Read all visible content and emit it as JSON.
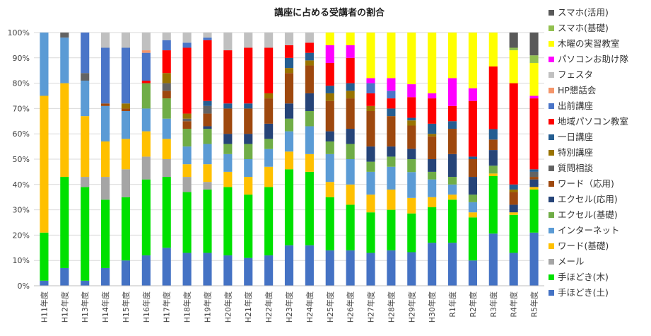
{
  "chart_data": {
    "type": "stacked-bar-100",
    "title": "講座に占める受講者の割合",
    "xlabel": "",
    "ylabel": "",
    "ylim": [
      0,
      100
    ],
    "yticks": [
      "0%",
      "10%",
      "20%",
      "30%",
      "40%",
      "50%",
      "60%",
      "70%",
      "80%",
      "90%",
      "100%"
    ],
    "legend_position": "right",
    "categories": [
      "H11年度",
      "H12年度",
      "H13年度",
      "H14年度",
      "H15年度",
      "H16年度",
      "H17年度",
      "H18年度",
      "H19年度",
      "H20年度",
      "H21年度",
      "H22年度",
      "H23年度",
      "H24年度",
      "H25年度",
      "H26年度",
      "H27年度",
      "H28年度",
      "H29年度",
      "H30年度",
      "R1年度",
      "R2年度",
      "R3年度",
      "R4年度",
      "R5年度"
    ],
    "series": [
      {
        "name": "手ほどき(土)",
        "color": "#4472C4",
        "values": [
          2,
          7,
          2,
          7,
          10,
          12,
          15,
          13,
          13,
          12,
          11,
          12,
          16,
          16,
          14,
          14,
          13,
          14,
          13,
          17,
          17,
          10,
          20,
          13,
          21
        ]
      },
      {
        "name": "手ほどき(木)",
        "color": "#00E000",
        "values": [
          19,
          36,
          37,
          27,
          25,
          30,
          28,
          24,
          25,
          27,
          25,
          27,
          30,
          29,
          21,
          18,
          16,
          16,
          15,
          14,
          17,
          17,
          22,
          15,
          17
        ]
      },
      {
        "name": "メール",
        "color": "#A5A5A5",
        "values": [
          0,
          0,
          4,
          9,
          11,
          9,
          7,
          6,
          3,
          0,
          0,
          0,
          0,
          0,
          0,
          0,
          0,
          0,
          0,
          0,
          0,
          0,
          0,
          0,
          0
        ]
      },
      {
        "name": "ワード(基礎)",
        "color": "#FFC000",
        "values": [
          54,
          37,
          24,
          14,
          12,
          10,
          8,
          5,
          7,
          6,
          7,
          8,
          7,
          7,
          6,
          8,
          7,
          8,
          6,
          4,
          2,
          2,
          1,
          1,
          1
        ]
      },
      {
        "name": "インターネット",
        "color": "#5B9BD5",
        "values": [
          25,
          18,
          14,
          14,
          11,
          9,
          8,
          7,
          8,
          7,
          7,
          7,
          8,
          11,
          11,
          10,
          9,
          9,
          10,
          7,
          4,
          4,
          0,
          0,
          0
        ]
      },
      {
        "name": "エクセル(基礎)",
        "color": "#70AD47",
        "values": [
          0,
          0,
          0,
          0,
          0,
          10,
          8,
          7,
          6,
          4,
          6,
          4,
          5,
          6,
          5,
          6,
          4,
          4,
          5,
          3,
          3,
          3,
          3,
          0,
          0
        ]
      },
      {
        "name": "エクセル(応用)",
        "color": "#264478",
        "values": [
          0,
          0,
          0,
          0,
          0,
          0,
          0,
          0,
          1,
          4,
          4,
          6,
          6,
          7,
          4,
          6,
          6,
          4,
          4,
          5,
          9,
          7,
          6,
          3,
          3
        ]
      },
      {
        "name": "ワード（応用)",
        "color": "#9E480E",
        "values": [
          0,
          0,
          0,
          1,
          1,
          0,
          3,
          3,
          5,
          10,
          10,
          10,
          12,
          11,
          12,
          12,
          14,
          12,
          9,
          9,
          10,
          7,
          4,
          5,
          1
        ]
      },
      {
        "name": "質問相談",
        "color": "#636363",
        "values": [
          0,
          2,
          3,
          0,
          0,
          0,
          3,
          1,
          3,
          0,
          0,
          0,
          0,
          0,
          0,
          0,
          0,
          0,
          0,
          0,
          0,
          0,
          0,
          0,
          2
        ]
      },
      {
        "name": "特別講座",
        "color": "#997300",
        "values": [
          0,
          0,
          0,
          0,
          2,
          0,
          4,
          2,
          0,
          0,
          0,
          2,
          2,
          2,
          3,
          3,
          2,
          0,
          2,
          1,
          0,
          0,
          0,
          1,
          0
        ]
      },
      {
        "name": "一日講座",
        "color": "#255E91",
        "values": [
          0,
          0,
          0,
          0,
          0,
          0,
          0,
          0,
          2,
          2,
          2,
          0,
          4,
          3,
          3,
          3,
          0,
          3,
          1,
          4,
          3,
          1,
          4,
          2,
          1
        ]
      },
      {
        "name": "地域パソコン教室",
        "color": "#FF0000",
        "values": [
          0,
          0,
          0,
          0,
          0,
          1,
          9,
          26,
          24,
          21,
          22,
          18,
          5,
          4,
          9,
          10,
          5,
          4,
          8,
          10,
          6,
          22,
          24,
          40,
          28
        ]
      },
      {
        "name": "出前講座",
        "color": "#4A75C8",
        "values": [
          0,
          0,
          16,
          22,
          22,
          11,
          4,
          2,
          1,
          0,
          0,
          0,
          0,
          0,
          0,
          0,
          4,
          3,
          0,
          0,
          0,
          0,
          0,
          0,
          0
        ]
      },
      {
        "name": "HP懇話会",
        "color": "#F4956A",
        "values": [
          0,
          0,
          0,
          0,
          0,
          1,
          0,
          0,
          0,
          0,
          0,
          0,
          0,
          0,
          0,
          0,
          0,
          0,
          0,
          0,
          0,
          0,
          0,
          0,
          0
        ]
      },
      {
        "name": "フェスタ",
        "color": "#C0C0C0",
        "values": [
          0,
          0,
          0,
          6,
          6,
          7,
          3,
          4,
          2,
          7,
          6,
          6,
          5,
          4,
          0,
          0,
          0,
          0,
          0,
          0,
          0,
          0,
          0,
          0,
          0
        ]
      },
      {
        "name": "パソコンお助け隊",
        "color": "#FF00FF",
        "values": [
          0,
          0,
          0,
          0,
          0,
          0,
          0,
          0,
          0,
          0,
          0,
          0,
          0,
          0,
          7,
          5,
          2,
          5,
          5,
          2,
          11,
          5,
          0,
          0,
          1
        ]
      },
      {
        "name": "木曜の実習教室",
        "color": "#FFFF00",
        "values": [
          0,
          0,
          0,
          0,
          0,
          0,
          0,
          0,
          0,
          0,
          0,
          0,
          0,
          0,
          5,
          5,
          18,
          18,
          20,
          24,
          18,
          22,
          13,
          13,
          13
        ]
      },
      {
        "name": "スマホ(基礎)",
        "color": "#92C050",
        "values": [
          0,
          0,
          0,
          0,
          0,
          0,
          0,
          0,
          0,
          0,
          0,
          0,
          0,
          0,
          0,
          0,
          0,
          0,
          0,
          0,
          0,
          0,
          0,
          1,
          3
        ]
      },
      {
        "name": "スマホ(活用)",
        "color": "#595959",
        "values": [
          0,
          0,
          0,
          0,
          0,
          0,
          0,
          0,
          0,
          0,
          0,
          0,
          0,
          0,
          0,
          0,
          0,
          0,
          0,
          0,
          0,
          0,
          0,
          6,
          9
        ]
      }
    ]
  }
}
